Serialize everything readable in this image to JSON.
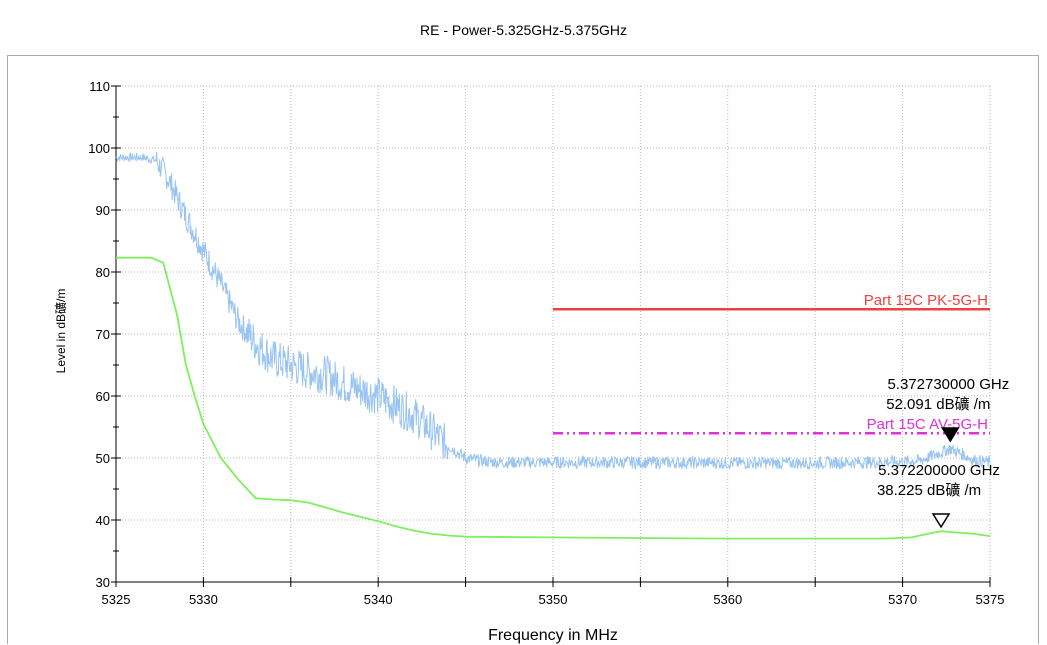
{
  "chart_data": {
    "type": "line",
    "title": "RE - Power-5.325GHz-5.375GHz",
    "xlabel": "Frequency in MHz",
    "ylabel": "Level in dB礦/m",
    "xlim": [
      5325,
      5375
    ],
    "ylim": [
      30,
      110
    ],
    "xticks": [
      "5325",
      "5330",
      "5340",
      "5350",
      "5360",
      "5370",
      "5375"
    ],
    "yticks": [
      "30",
      "40",
      "50",
      "60",
      "70",
      "80",
      "90",
      "100",
      "110"
    ],
    "grid": true,
    "series": [
      {
        "name": "",
        "color": "#99c4f2",
        "x": [
          5325,
          5326.5,
          5327.3,
          5328,
          5329,
          5330,
          5331,
          5332,
          5333,
          5334,
          5335,
          5336,
          5337,
          5338,
          5339,
          5340,
          5341,
          5342,
          5343,
          5344,
          5345,
          5346,
          5347,
          5350,
          5355,
          5360,
          5365,
          5370,
          5371,
          5372.73,
          5373.5,
          5374,
          5375
        ],
        "y": [
          98.5,
          98.5,
          98,
          95,
          89,
          83.5,
          78,
          72,
          68.5,
          66,
          65,
          64,
          63.5,
          62,
          61,
          60,
          58.5,
          57,
          54.5,
          52,
          50,
          49.5,
          49.3,
          49.3,
          49.3,
          49.2,
          49.2,
          49.4,
          49.6,
          51.5,
          50.5,
          49.7,
          49.3
        ]
      },
      {
        "name": "",
        "color": "#80ee60",
        "x": [
          5325,
          5327,
          5327.7,
          5328.5,
          5329,
          5329.5,
          5330,
          5331,
          5332,
          5333,
          5334,
          5335,
          5336,
          5337,
          5338,
          5339,
          5340,
          5341,
          5342,
          5343,
          5344,
          5345,
          5350,
          5360,
          5369,
          5370.5,
          5371.5,
          5372.2,
          5373,
          5374,
          5375
        ],
        "y": [
          82.3,
          82.3,
          81.5,
          73,
          65,
          60,
          55.5,
          50,
          46.5,
          43.5,
          43.3,
          43.2,
          42.8,
          42,
          41.2,
          40.5,
          39.8,
          39,
          38.3,
          37.8,
          37.5,
          37.3,
          37.2,
          37,
          37,
          37.2,
          37.8,
          38.2,
          38,
          37.8,
          37.4
        ]
      }
    ],
    "limit_lines": [
      {
        "name": "Part 15C PK-5G-H",
        "value": 74,
        "x": [
          5350,
          5375
        ],
        "color": "#ef4040"
      },
      {
        "name": "Part 15C AV-5G-H",
        "value": 54,
        "x": [
          5350,
          5375
        ],
        "color": "#e030e0"
      }
    ],
    "markers": [
      {
        "freq": "5.372730000 GHz",
        "level": "52.091 dB礦 /m",
        "x": 5372.73,
        "y": 52.091,
        "filled": true
      },
      {
        "freq": "5.372200000 GHz",
        "level": "38.225 dB礦 /m",
        "x": 5372.2,
        "y": 38.225,
        "filled": false
      }
    ]
  }
}
